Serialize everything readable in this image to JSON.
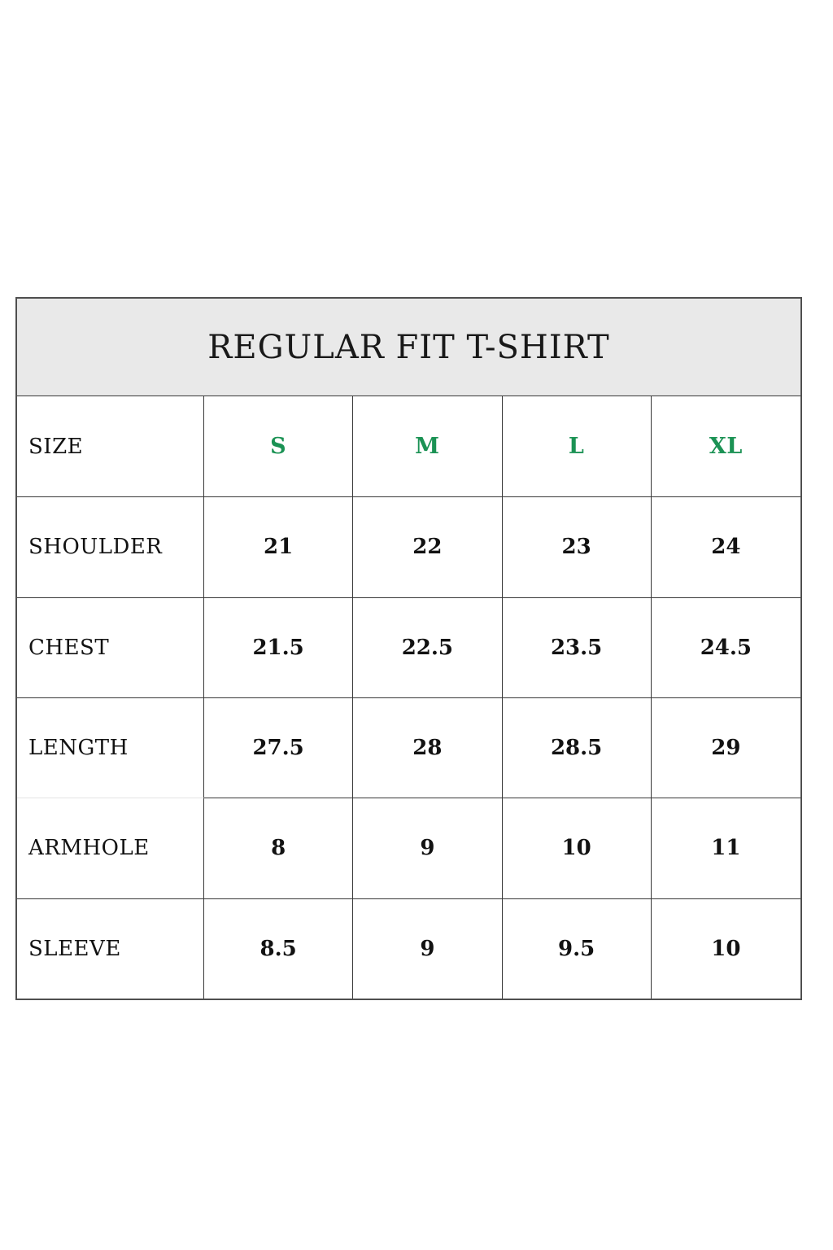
{
  "title": "REGULAR FIT T-SHIRT",
  "colors": {
    "accent_green": "#1b9254",
    "banner_gray": "#e9e9e9",
    "border_dark": "#383838",
    "border_outer": "#4f4f4f",
    "text": "#121212"
  },
  "table": {
    "size_header_label": "SIZE",
    "sizes": [
      "S",
      "M",
      "L",
      "XL"
    ],
    "rows": [
      {
        "label": "SHOULDER",
        "values": [
          "21",
          "22",
          "23",
          "24"
        ]
      },
      {
        "label": "CHEST",
        "values": [
          "21.5",
          "22.5",
          "23.5",
          "24.5"
        ]
      },
      {
        "label": "LENGTH",
        "values": [
          "27.5",
          "28",
          "28.5",
          "29"
        ]
      },
      {
        "label": "ARMHOLE",
        "values": [
          "8",
          "9",
          "10",
          "11"
        ]
      },
      {
        "label": "SLEEVE",
        "values": [
          "8.5",
          "9",
          "9.5",
          "10"
        ]
      }
    ]
  },
  "chart_data": {
    "type": "table",
    "title": "REGULAR FIT T-SHIRT",
    "categories": [
      "S",
      "M",
      "L",
      "XL"
    ],
    "series": [
      {
        "name": "SHOULDER",
        "values": [
          21,
          22,
          23,
          24
        ]
      },
      {
        "name": "CHEST",
        "values": [
          21.5,
          22.5,
          23.5,
          24.5
        ]
      },
      {
        "name": "LENGTH",
        "values": [
          27.5,
          28,
          28.5,
          29
        ]
      },
      {
        "name": "ARMHOLE",
        "values": [
          8,
          9,
          10,
          11
        ]
      },
      {
        "name": "SLEEVE",
        "values": [
          8.5,
          9,
          9.5,
          10
        ]
      }
    ]
  }
}
